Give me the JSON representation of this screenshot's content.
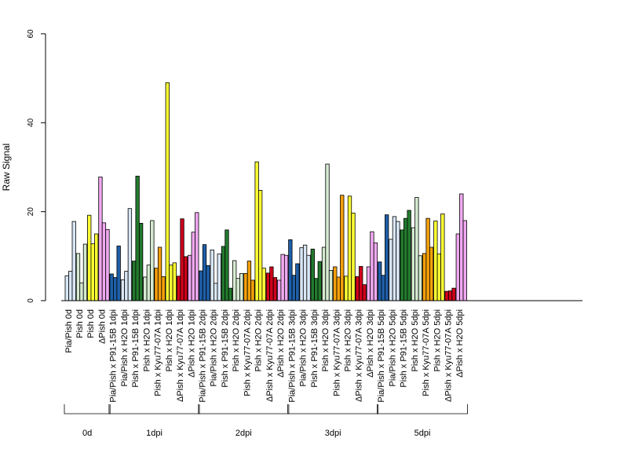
{
  "chart_data": {
    "type": "bar",
    "xlabel": "",
    "ylabel": "Raw Signal",
    "ylim": [
      0,
      60
    ],
    "yticks": [
      0,
      20,
      40,
      60
    ],
    "grid": false,
    "legend": "none",
    "categories": [
      "Pia/Pish 0d",
      "Pish 0d",
      "Pish 0d",
      "ΔPish 0d",
      "Pia/Pish x P91-15B 1dpi",
      "Pia/Pish x H2O 1dpi",
      "Pish x P91-15B 1dpi",
      "Pish x H2O 1dpi",
      "Pish x Kyu77-07A 1dpi",
      "Pish x H2O 1dpi",
      "ΔPish x Kyu77-07A 1dpi",
      "ΔPish x H2O 1dpi",
      "Pia/Pish x P91-15B 2dpi",
      "Pia/Pish x H2O 2dpi",
      "Pish x P91-15B 2dpi",
      "Pish x H2O 2dpi",
      "Pish x Kyu77-07A 2dpi",
      "Pish x H2O 2dpi",
      "ΔPish x Kyu77-07A 2dpi",
      "ΔPish x H2O 2dpi",
      "Pia/Pish x P91-15B 3dpi",
      "Pia/Pish x H2O 3dpi",
      "Pish x P91-15B 3dpi",
      "Pish x H2O 3dpi",
      "Pish x Kyu77-07A 3dpi",
      "Pish x H2O 3dpi",
      "ΔPish x Kyu77-07A 3dpi",
      "ΔPish x H2O 3dpi",
      "Pia/Pish x P91-15B 5dpi",
      "Pia/Pish x H2O 5dpi",
      "Pish x P91-15B 5dpi",
      "Pish x H2O 5dpi",
      "Pish x Kyu77-07A 5dpi",
      "Pish x H2O 5dpi",
      "ΔPish x Kyu77-07A 5dpi",
      "ΔPish x H2O 5dpi"
    ],
    "colors": [
      "#d8e6f5",
      "#d4ead0",
      "#ffff33",
      "#f0a8f0",
      "#1f5fa8",
      "#d8e6f5",
      "#237a2e",
      "#d4ead0",
      "#f5a00a",
      "#ffff33",
      "#d0021b",
      "#f0a8f0",
      "#1f5fa8",
      "#d8e6f5",
      "#237a2e",
      "#d4ead0",
      "#f5a00a",
      "#ffff33",
      "#d0021b",
      "#f0a8f0",
      "#1f5fa8",
      "#d8e6f5",
      "#237a2e",
      "#d4ead0",
      "#f5a00a",
      "#ffff33",
      "#d0021b",
      "#f0a8f0",
      "#1f5fa8",
      "#d8e6f5",
      "#237a2e",
      "#d4ead0",
      "#f5a00a",
      "#ffff33",
      "#d0021b",
      "#f0a8f0"
    ],
    "values": [
      [
        5.6,
        6.6,
        17.8
      ],
      [
        10.6,
        4.0,
        12.7
      ],
      [
        19.2,
        12.8,
        15.0
      ],
      [
        27.8,
        17.5,
        16.0
      ],
      [
        6.0,
        5.2,
        12.3
      ],
      [
        4.7,
        6.6,
        20.7
      ],
      [
        8.9,
        28.0,
        17.4
      ],
      [
        5.3,
        8.0,
        18.0
      ],
      [
        7.3,
        12.0,
        5.4
      ],
      [
        49.0,
        8.0,
        8.5
      ],
      [
        5.5,
        18.4,
        9.9
      ],
      [
        10.2,
        15.4,
        19.8
      ],
      [
        6.7,
        12.6,
        7.9
      ],
      [
        11.4,
        3.9,
        10.5
      ],
      [
        12.2,
        15.9,
        2.8
      ],
      [
        9.0,
        5.0,
        6.1
      ],
      [
        6.1,
        8.9,
        4.6
      ],
      [
        31.2,
        24.8,
        7.3
      ],
      [
        6.2,
        7.6,
        5.2
      ],
      [
        4.6,
        10.4,
        10.2
      ],
      [
        13.7,
        5.7,
        8.3
      ],
      [
        11.9,
        12.5,
        10.2
      ],
      [
        11.6,
        5.0,
        8.8
      ],
      [
        12.0,
        30.7,
        6.8
      ],
      [
        7.6,
        5.3,
        23.7
      ],
      [
        5.5,
        23.5,
        19.7
      ],
      [
        5.4,
        7.7,
        3.6
      ],
      [
        7.6,
        15.5,
        13.0
      ],
      [
        8.7,
        5.7,
        19.3
      ],
      [
        13.8,
        18.9,
        17.8
      ],
      [
        15.9,
        18.5,
        20.3
      ],
      [
        16.4,
        23.2,
        10.1
      ],
      [
        10.6,
        18.5,
        12.0
      ],
      [
        17.9,
        10.5,
        19.5
      ],
      [
        2.1,
        2.2,
        2.8
      ],
      [
        15.0,
        24.0,
        18.0
      ]
    ],
    "groups": [
      {
        "label": "0d",
        "start": 0,
        "end": 3
      },
      {
        "label": "1dpi",
        "start": 4,
        "end": 11
      },
      {
        "label": "2dpi",
        "start": 12,
        "end": 19
      },
      {
        "label": "3dpi",
        "start": 20,
        "end": 27
      },
      {
        "label": "5dpi",
        "start": 28,
        "end": 35
      }
    ]
  }
}
